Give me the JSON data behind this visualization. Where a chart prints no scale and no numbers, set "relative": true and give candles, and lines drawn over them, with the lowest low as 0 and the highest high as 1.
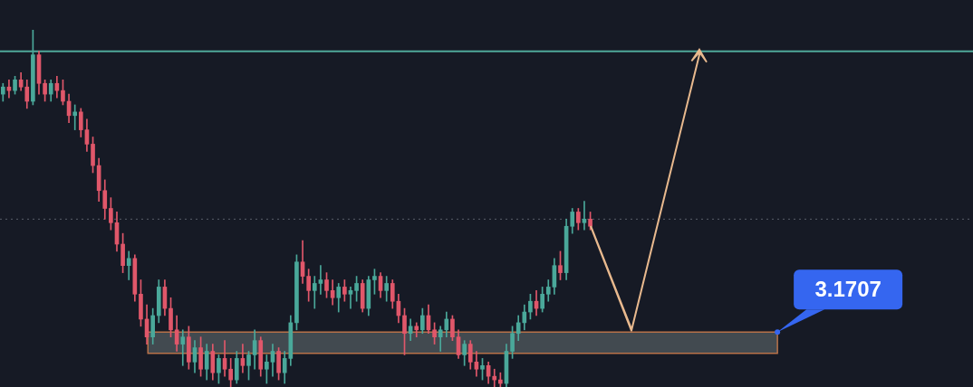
{
  "chart_data": {
    "type": "candlestick",
    "relative": true,
    "legend": false,
    "tick_labels": false,
    "categories": [
      null,
      null,
      null,
      null,
      null,
      null,
      null,
      null,
      null,
      null,
      null,
      null,
      null,
      null,
      null,
      null,
      null,
      null,
      null,
      null,
      null,
      null,
      null,
      null,
      null,
      null,
      null,
      null,
      null,
      null,
      null,
      null,
      null,
      null,
      null,
      null,
      null,
      null,
      null,
      null,
      null,
      null,
      null,
      null,
      null,
      null,
      null,
      null,
      null,
      null,
      null,
      null,
      null,
      null,
      null,
      null,
      null,
      null,
      null,
      null,
      null,
      null,
      null,
      null,
      null,
      null,
      null,
      null,
      null,
      null,
      null,
      null,
      null,
      null,
      null,
      null,
      null,
      null,
      null,
      null,
      null,
      null,
      null,
      null,
      null,
      null,
      null,
      null,
      null,
      null,
      null,
      null,
      null,
      null,
      null,
      null,
      null,
      null,
      null
    ],
    "ohlc": [
      [
        0.82,
        0.85,
        0.8,
        0.84
      ],
      [
        0.84,
        0.86,
        0.81,
        0.83
      ],
      [
        0.83,
        0.87,
        0.82,
        0.86
      ],
      [
        0.86,
        0.88,
        0.83,
        0.84
      ],
      [
        0.84,
        0.86,
        0.78,
        0.8
      ],
      [
        0.8,
        1.0,
        0.79,
        0.93
      ],
      [
        0.93,
        0.94,
        0.82,
        0.85
      ],
      [
        0.85,
        0.86,
        0.8,
        0.82
      ],
      [
        0.82,
        0.86,
        0.8,
        0.85
      ],
      [
        0.85,
        0.87,
        0.81,
        0.83
      ],
      [
        0.83,
        0.86,
        0.79,
        0.8
      ],
      [
        0.8,
        0.82,
        0.74,
        0.76
      ],
      [
        0.76,
        0.79,
        0.72,
        0.77
      ],
      [
        0.77,
        0.78,
        0.7,
        0.72
      ],
      [
        0.72,
        0.75,
        0.66,
        0.68
      ],
      [
        0.68,
        0.7,
        0.6,
        0.62
      ],
      [
        0.62,
        0.64,
        0.52,
        0.55
      ],
      [
        0.55,
        0.58,
        0.47,
        0.5
      ],
      [
        0.5,
        0.53,
        0.44,
        0.46
      ],
      [
        0.46,
        0.49,
        0.38,
        0.4
      ],
      [
        0.4,
        0.43,
        0.32,
        0.34
      ],
      [
        0.34,
        0.38,
        0.3,
        0.36
      ],
      [
        0.36,
        0.37,
        0.24,
        0.26
      ],
      [
        0.26,
        0.3,
        0.17,
        0.19
      ],
      [
        0.19,
        0.23,
        0.12,
        0.14
      ],
      [
        0.14,
        0.22,
        0.12,
        0.2
      ],
      [
        0.2,
        0.3,
        0.18,
        0.28
      ],
      [
        0.28,
        0.3,
        0.2,
        0.22
      ],
      [
        0.22,
        0.25,
        0.14,
        0.16
      ],
      [
        0.16,
        0.2,
        0.1,
        0.12
      ],
      [
        0.12,
        0.16,
        0.06,
        0.14
      ],
      [
        0.14,
        0.17,
        0.05,
        0.07
      ],
      [
        0.07,
        0.13,
        0.04,
        0.11
      ],
      [
        0.11,
        0.14,
        0.03,
        0.05
      ],
      [
        0.05,
        0.12,
        0.02,
        0.1
      ],
      [
        0.1,
        0.12,
        0.02,
        0.04
      ],
      [
        0.04,
        0.09,
        0.01,
        0.08
      ],
      [
        0.08,
        0.13,
        0.03,
        0.05
      ],
      [
        0.05,
        0.08,
        0.0,
        0.02
      ],
      [
        0.02,
        0.1,
        0.01,
        0.08
      ],
      [
        0.08,
        0.12,
        0.04,
        0.06
      ],
      [
        0.06,
        0.1,
        0.02,
        0.09
      ],
      [
        0.09,
        0.16,
        0.05,
        0.13
      ],
      [
        0.13,
        0.14,
        0.03,
        0.05
      ],
      [
        0.05,
        0.09,
        0.01,
        0.07
      ],
      [
        0.07,
        0.12,
        0.03,
        0.1
      ],
      [
        0.1,
        0.11,
        0.02,
        0.04
      ],
      [
        0.04,
        0.1,
        0.01,
        0.08
      ],
      [
        0.08,
        0.2,
        0.06,
        0.18
      ],
      [
        0.18,
        0.37,
        0.16,
        0.35
      ],
      [
        0.35,
        0.41,
        0.29,
        0.31
      ],
      [
        0.31,
        0.33,
        0.24,
        0.27
      ],
      [
        0.27,
        0.31,
        0.22,
        0.29
      ],
      [
        0.29,
        0.34,
        0.26,
        0.3
      ],
      [
        0.3,
        0.32,
        0.25,
        0.27
      ],
      [
        0.27,
        0.3,
        0.23,
        0.25
      ],
      [
        0.25,
        0.29,
        0.21,
        0.28
      ],
      [
        0.28,
        0.3,
        0.24,
        0.26
      ],
      [
        0.26,
        0.28,
        0.22,
        0.27
      ],
      [
        0.27,
        0.31,
        0.24,
        0.29
      ],
      [
        0.29,
        0.3,
        0.21,
        0.22
      ],
      [
        0.22,
        0.31,
        0.2,
        0.3
      ],
      [
        0.3,
        0.33,
        0.26,
        0.31
      ],
      [
        0.31,
        0.32,
        0.25,
        0.27
      ],
      [
        0.27,
        0.31,
        0.24,
        0.29
      ],
      [
        0.29,
        0.3,
        0.22,
        0.24
      ],
      [
        0.24,
        0.26,
        0.18,
        0.2
      ],
      [
        0.2,
        0.22,
        0.09,
        0.15
      ],
      [
        0.15,
        0.19,
        0.13,
        0.17
      ],
      [
        0.17,
        0.18,
        0.14,
        0.16
      ],
      [
        0.16,
        0.22,
        0.15,
        0.2
      ],
      [
        0.2,
        0.23,
        0.15,
        0.16
      ],
      [
        0.16,
        0.18,
        0.12,
        0.14
      ],
      [
        0.14,
        0.17,
        0.1,
        0.16
      ],
      [
        0.16,
        0.21,
        0.14,
        0.19
      ],
      [
        0.19,
        0.2,
        0.13,
        0.14
      ],
      [
        0.14,
        0.16,
        0.08,
        0.09
      ],
      [
        0.09,
        0.13,
        0.06,
        0.12
      ],
      [
        0.12,
        0.13,
        0.05,
        0.07
      ],
      [
        0.07,
        0.1,
        0.03,
        0.05
      ],
      [
        0.05,
        0.08,
        0.02,
        0.06
      ],
      [
        0.06,
        0.07,
        0.01,
        0.03
      ],
      [
        0.03,
        0.05,
        0.0,
        0.02
      ],
      [
        0.02,
        0.04,
        0.0,
        0.01
      ],
      [
        0.01,
        0.12,
        0.0,
        0.1
      ],
      [
        0.1,
        0.17,
        0.08,
        0.15
      ],
      [
        0.15,
        0.2,
        0.13,
        0.18
      ],
      [
        0.18,
        0.23,
        0.16,
        0.21
      ],
      [
        0.21,
        0.26,
        0.19,
        0.24
      ],
      [
        0.24,
        0.27,
        0.2,
        0.22
      ],
      [
        0.22,
        0.28,
        0.21,
        0.26
      ],
      [
        0.26,
        0.3,
        0.24,
        0.28
      ],
      [
        0.28,
        0.36,
        0.26,
        0.34
      ],
      [
        0.34,
        0.38,
        0.3,
        0.32
      ],
      [
        0.32,
        0.47,
        0.3,
        0.45
      ],
      [
        0.45,
        0.5,
        0.43,
        0.49
      ],
      [
        0.49,
        0.5,
        0.44,
        0.46
      ],
      [
        0.46,
        0.52,
        0.44,
        0.47
      ],
      [
        0.47,
        0.49,
        0.44,
        0.45
      ]
    ],
    "colors": [
      "#4aa89a",
      "#e0576a",
      "#4aa89a",
      "#e0576a",
      "#e0576a",
      "#4aa89a",
      "#e0576a",
      "#e0576a",
      "#4aa89a",
      "#e0576a",
      "#e0576a",
      "#e0576a",
      "#4aa89a",
      "#e0576a",
      "#e0576a",
      "#e0576a",
      "#e0576a",
      "#e0576a",
      "#e0576a",
      "#e0576a",
      "#e0576a",
      "#4aa89a",
      "#e0576a",
      "#e0576a",
      "#e0576a",
      "#4aa89a",
      "#4aa89a",
      "#e0576a",
      "#e0576a",
      "#e0576a",
      "#4aa89a",
      "#e0576a",
      "#4aa89a",
      "#e0576a",
      "#4aa89a",
      "#e0576a",
      "#4aa89a",
      "#e0576a",
      "#e0576a",
      "#4aa89a",
      "#e0576a",
      "#4aa89a",
      "#4aa89a",
      "#e0576a",
      "#4aa89a",
      "#4aa89a",
      "#e0576a",
      "#4aa89a",
      "#4aa89a",
      "#4aa89a",
      "#e0576a",
      "#e0576a",
      "#4aa89a",
      "#4aa89a",
      "#e0576a",
      "#e0576a",
      "#4aa89a",
      "#e0576a",
      "#4aa89a",
      "#4aa89a",
      "#e0576a",
      "#4aa89a",
      "#4aa89a",
      "#e0576a",
      "#4aa89a",
      "#e0576a",
      "#e0576a",
      "#e0576a",
      "#4aa89a",
      "#e0576a",
      "#4aa89a",
      "#e0576a",
      "#e0576a",
      "#4aa89a",
      "#4aa89a",
      "#e0576a",
      "#e0576a",
      "#4aa89a",
      "#e0576a",
      "#e0576a",
      "#4aa89a",
      "#e0576a",
      "#e0576a",
      "#e0576a",
      "#4aa89a",
      "#4aa89a",
      "#4aa89a",
      "#4aa89a",
      "#4aa89a",
      "#e0576a",
      "#4aa89a",
      "#4aa89a",
      "#4aa89a",
      "#e0576a",
      "#4aa89a",
      "#4aa89a",
      "#e0576a",
      "#4aa89a",
      "#e0576a"
    ],
    "ref_lines": [
      {
        "axis": "y",
        "value": 0.94,
        "color": "#4fa89a",
        "line_style": "solid"
      },
      {
        "axis": "y",
        "value": 0.47,
        "color": "#5a5f6b",
        "line_style": "dotted"
      }
    ],
    "bands": [
      {
        "axis": "y",
        "from": 0.094,
        "to": 0.154,
        "label": "3.1707",
        "color": "#4a5458"
      }
    ]
  }
}
